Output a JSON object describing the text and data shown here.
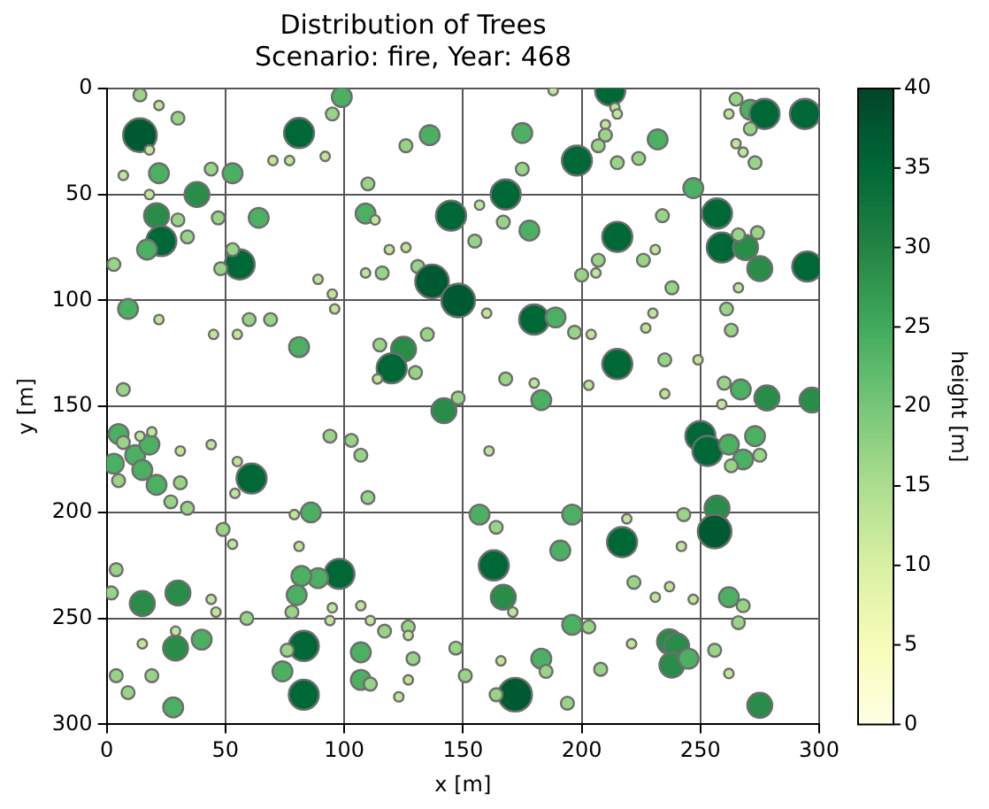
{
  "chart_data": {
    "type": "bubble",
    "title": "Distribution of Trees",
    "subtitle": "Scenario: fire, Year: 468",
    "xlabel": "x [m]",
    "ylabel": "y [m]",
    "clabel": "height [m]",
    "x": [
      14,
      22,
      30,
      14,
      18,
      7,
      22,
      38,
      18,
      21,
      23,
      17,
      30,
      34,
      47,
      3,
      56,
      48,
      53,
      64,
      53,
      44,
      9,
      22,
      45,
      55,
      60,
      69,
      7,
      81,
      70,
      77,
      81,
      95,
      99,
      92,
      110,
      109,
      113,
      126,
      136,
      145,
      119,
      126,
      109,
      116,
      131,
      137,
      148,
      89,
      95,
      96,
      135,
      125,
      120,
      115,
      130,
      114,
      188,
      212,
      214,
      215,
      210,
      210,
      207,
      215,
      224,
      232,
      175,
      175,
      198,
      168,
      157,
      167,
      178,
      155,
      215,
      234,
      226,
      231,
      207,
      206,
      200,
      238,
      247,
      257,
      259,
      269,
      275,
      266,
      274,
      266,
      160,
      180,
      189,
      197,
      204,
      227,
      230,
      215,
      235,
      249,
      261,
      263,
      168,
      183,
      180,
      203,
      235,
      260,
      267,
      278,
      148,
      259,
      271,
      277,
      265,
      262,
      271,
      273,
      265,
      268,
      294,
      295,
      297,
      142,
      5,
      3,
      12,
      18,
      15,
      21,
      5,
      14,
      19,
      7,
      31,
      44,
      31,
      27,
      34,
      55,
      61,
      54,
      49,
      53,
      94,
      103,
      107,
      110,
      79,
      86,
      81,
      98,
      89,
      82,
      80,
      78,
      4,
      2,
      15,
      30,
      44,
      46,
      59,
      95,
      107,
      94,
      111,
      117,
      127,
      127,
      29,
      29,
      40,
      15,
      83,
      76,
      107,
      129,
      147,
      74,
      4,
      19,
      9,
      28,
      83,
      107,
      111,
      123,
      127,
      161,
      250,
      253,
      262,
      268,
      273,
      275,
      263,
      157,
      164,
      196,
      219,
      191,
      217,
      243,
      242,
      257,
      256,
      163,
      167,
      171,
      222,
      231,
      237,
      247,
      262,
      268,
      266,
      196,
      203,
      166,
      183,
      185,
      221,
      208,
      237,
      240,
      238,
      245,
      256,
      262,
      151,
      172,
      164,
      194,
      275
    ],
    "values": [
      3,
      8,
      14,
      22,
      29,
      41,
      40,
      50,
      50,
      60,
      72,
      76,
      62,
      70,
      61,
      83,
      83,
      85,
      76,
      61,
      40,
      38,
      104,
      109,
      116,
      116,
      109,
      109,
      142,
      122,
      34,
      34,
      21,
      12,
      4,
      32,
      45,
      59,
      62,
      27,
      22,
      60,
      76,
      75,
      87,
      87,
      84,
      91,
      100,
      90,
      97,
      104,
      116,
      123,
      132,
      121,
      134,
      137,
      1,
      1,
      9,
      12,
      17,
      22,
      27,
      35,
      33,
      24,
      21,
      38,
      34,
      50,
      55,
      63,
      67,
      72,
      70,
      60,
      81,
      76,
      81,
      87,
      88,
      94,
      47,
      59,
      75,
      75,
      85,
      69,
      68,
      94,
      106,
      109,
      108,
      115,
      116,
      113,
      106,
      130,
      128,
      128,
      104,
      114,
      137,
      147,
      139,
      140,
      144,
      139,
      142,
      146,
      146,
      149,
      10,
      12,
      5,
      12,
      19,
      35,
      26,
      30,
      12,
      84,
      147,
      152,
      163,
      177,
      173,
      168,
      180,
      187,
      185,
      164,
      162,
      167,
      171,
      168,
      186,
      195,
      198,
      176,
      184,
      191,
      208,
      215,
      164,
      166,
      173,
      193,
      201,
      200,
      216,
      229,
      231,
      230,
      239,
      247,
      227,
      238,
      243,
      238,
      241,
      247,
      250,
      245,
      244,
      251,
      251,
      256,
      254,
      258,
      264,
      256,
      260,
      262,
      263,
      265,
      266,
      269,
      264,
      275,
      277,
      277,
      285,
      292,
      286,
      279,
      281,
      287,
      279,
      171,
      164,
      171,
      168,
      175,
      164,
      173,
      178,
      201,
      207,
      201,
      203,
      218,
      214,
      201,
      216,
      198,
      209,
      225,
      240,
      247,
      233,
      240,
      235,
      241,
      240,
      244,
      252,
      253,
      254,
      270,
      269,
      275,
      262,
      274,
      261,
      263,
      272,
      269,
      265,
      276,
      277,
      286,
      286,
      290,
      291
    ],
    "sizes": [
      0.15,
      0.08,
      0.15,
      1,
      0.08,
      0.08,
      0.35,
      0.55,
      0.08,
      0.55,
      0.8,
      0.35,
      0.15,
      0.15,
      0.15,
      0.15,
      0.8,
      0.15,
      0.15,
      0.35,
      0.35,
      0.15,
      0.35,
      0.08,
      0.08,
      0.08,
      0.15,
      0.15,
      0.15,
      0.35,
      0.08,
      0.08,
      0.8,
      0.15,
      0.35,
      0.08,
      0.15,
      0.35,
      0.08,
      0.15,
      0.35,
      0.8,
      0.08,
      0.08,
      0.08,
      0.15,
      0.15,
      1,
      1,
      0.08,
      0.08,
      0.08,
      0.15,
      0.55,
      0.8,
      0.15,
      0.15,
      0.08,
      0.08,
      0.8,
      0.08,
      0.08,
      0.08,
      0.15,
      0.15,
      0.15,
      0.15,
      0.35,
      0.35,
      0.15,
      0.8,
      0.8,
      0.08,
      0.15,
      0.35,
      0.15,
      0.8,
      0.15,
      0.15,
      0.08,
      0.15,
      0.08,
      0.15,
      0.15,
      0.35,
      0.8,
      0.8,
      0.55,
      0.55,
      0.15,
      0.15,
      0.08,
      0.08,
      0.8,
      0.35,
      0.15,
      0.08,
      0.08,
      0.08,
      0.8,
      0.15,
      0.08,
      0.15,
      0.15,
      0.15,
      0.35,
      0.08,
      0.08,
      0.08,
      0.15,
      0.35,
      0.55,
      0.15,
      0.08,
      0.35,
      0.8,
      0.15,
      0.08,
      0.15,
      0.15,
      0.08,
      0.08,
      0.8,
      0.8,
      0.55,
      0.55,
      0.35,
      0.35,
      0.35,
      0.35,
      0.35,
      0.35,
      0.15,
      0.08,
      0.08,
      0.15,
      0.08,
      0.08,
      0.15,
      0.15,
      0.15,
      0.08,
      0.8,
      0.08,
      0.15,
      0.08,
      0.15,
      0.15,
      0.15,
      0.15,
      0.08,
      0.35,
      0.08,
      0.8,
      0.35,
      0.35,
      0.35,
      0.15,
      0.15,
      0.15,
      0.55,
      0.55,
      0.08,
      0.08,
      0.15,
      0.08,
      0.08,
      0.08,
      0.08,
      0.15,
      0.15,
      0.08,
      0.55,
      0.08,
      0.35,
      0.08,
      0.8,
      0.15,
      0.35,
      0.15,
      0.15,
      0.35,
      0.15,
      0.15,
      0.15,
      0.35,
      0.8,
      0.35,
      0.15,
      0.08,
      0.08,
      0.08,
      0.8,
      0.8,
      0.35,
      0.35,
      0.35,
      0.15,
      0.15,
      0.35,
      0.15,
      0.35,
      0.08,
      0.35,
      0.8,
      0.15,
      0.08,
      0.55,
      1,
      0.8,
      0.55,
      0.08,
      0.15,
      0.08,
      0.08,
      0.08,
      0.35,
      0.15,
      0.15,
      0.35,
      0.15,
      0.08,
      0.35,
      0.15,
      0.08,
      0.15,
      0.55,
      0.55,
      0.55,
      0.35,
      0.15,
      0.08,
      0.15,
      1,
      0.15,
      0.15,
      0.55
    ],
    "cvalues": [
      17,
      13,
      17,
      37,
      13,
      13,
      24,
      29,
      13,
      29,
      35,
      24,
      17,
      17,
      17,
      17,
      35,
      17,
      17,
      24,
      24,
      17,
      24,
      13,
      13,
      13,
      17,
      17,
      17,
      24,
      13,
      13,
      35,
      17,
      24,
      13,
      17,
      24,
      13,
      17,
      24,
      35,
      13,
      13,
      13,
      17,
      17,
      37,
      37,
      13,
      13,
      13,
      17,
      29,
      35,
      17,
      17,
      13,
      13,
      35,
      13,
      13,
      13,
      17,
      17,
      17,
      17,
      24,
      24,
      17,
      35,
      35,
      13,
      17,
      24,
      17,
      35,
      17,
      17,
      13,
      17,
      13,
      17,
      17,
      24,
      35,
      35,
      29,
      29,
      17,
      17,
      13,
      13,
      35,
      24,
      17,
      13,
      13,
      13,
      35,
      17,
      13,
      17,
      17,
      17,
      24,
      13,
      13,
      13,
      17,
      24,
      29,
      17,
      13,
      24,
      35,
      17,
      13,
      17,
      17,
      13,
      13,
      35,
      35,
      29,
      29,
      24,
      24,
      24,
      24,
      24,
      24,
      17,
      13,
      13,
      17,
      13,
      13,
      17,
      17,
      17,
      13,
      35,
      13,
      17,
      13,
      17,
      17,
      17,
      17,
      13,
      24,
      13,
      35,
      24,
      24,
      24,
      17,
      17,
      17,
      29,
      29,
      13,
      13,
      17,
      13,
      13,
      13,
      13,
      17,
      17,
      13,
      29,
      13,
      24,
      13,
      35,
      17,
      24,
      17,
      17,
      24,
      17,
      17,
      17,
      24,
      35,
      24,
      17,
      13,
      13,
      13,
      35,
      35,
      24,
      24,
      24,
      17,
      17,
      24,
      17,
      24,
      13,
      24,
      35,
      17,
      13,
      29,
      37,
      35,
      29,
      13,
      17,
      13,
      13,
      13,
      24,
      17,
      17,
      24,
      17,
      13,
      24,
      17,
      13,
      17,
      29,
      29,
      29,
      24,
      17,
      13,
      17,
      37,
      17,
      17,
      29
    ],
    "xlim": [
      0,
      300
    ],
    "xticks": [
      0,
      50,
      100,
      150,
      200,
      250,
      300
    ],
    "ylim": [
      300,
      0
    ],
    "yticks": [
      0,
      50,
      100,
      150,
      200,
      250,
      300
    ],
    "clim": [
      0,
      40
    ],
    "cticks": [
      0,
      5,
      10,
      15,
      20,
      25,
      30,
      35,
      40
    ],
    "grid": true
  }
}
